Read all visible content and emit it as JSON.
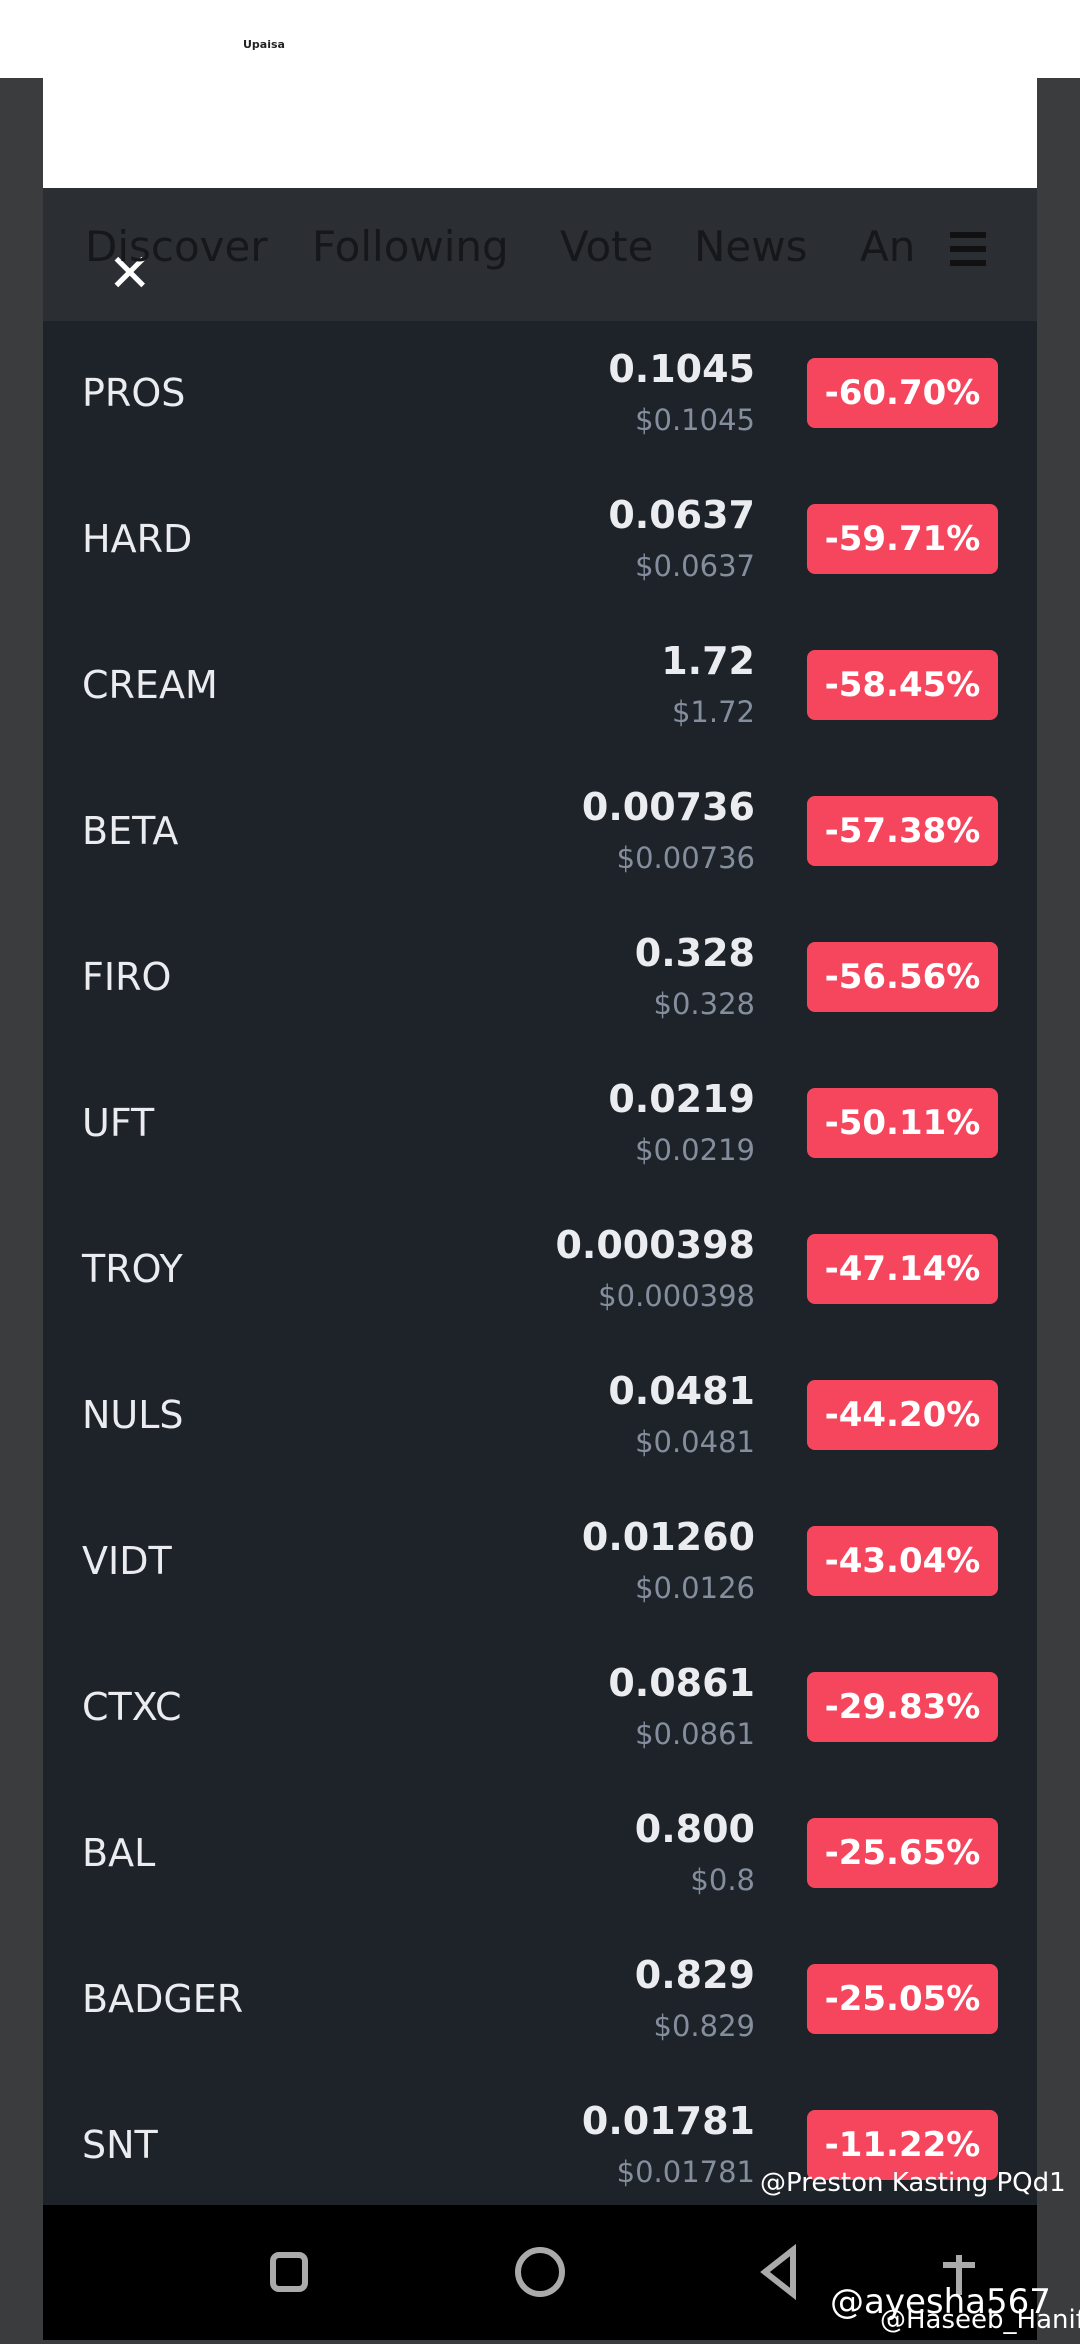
{
  "header": {
    "logo": "Upaisa"
  },
  "tabs": [
    "Discover",
    "Following",
    "Vote",
    "News",
    "An"
  ],
  "rows": [
    [
      "PROS",
      "0.1045",
      "$0.1045",
      "-60.70%"
    ],
    [
      "HARD",
      "0.0637",
      "$0.0637",
      "-59.71%"
    ],
    [
      "CREAM",
      "1.72",
      "$1.72",
      "-58.45%"
    ],
    [
      "BETA",
      "0.00736",
      "$0.00736",
      "-57.38%"
    ],
    [
      "FIRO",
      "0.328",
      "$0.328",
      "-56.56%"
    ],
    [
      "UFT",
      "0.0219",
      "$0.0219",
      "-50.11%"
    ],
    [
      "TROY",
      "0.000398",
      "$0.000398",
      "-47.14%"
    ],
    [
      "NULS",
      "0.0481",
      "$0.0481",
      "-44.20%"
    ],
    [
      "VIDT",
      "0.01260",
      "$0.0126",
      "-43.04%"
    ],
    [
      "CTXC",
      "0.0861",
      "$0.0861",
      "-29.83%"
    ],
    [
      "BAL",
      "0.800",
      "$0.8",
      "-25.65%"
    ],
    [
      "BADGER",
      "0.829",
      "$0.829",
      "-25.05%"
    ],
    [
      "SNT",
      "0.01781",
      "$0.01781",
      "-11.22%"
    ]
  ],
  "watermarks": [
    "@Preston Kasting PQd1",
    "@ayesha567",
    "@Haseeb_Hanif"
  ]
}
